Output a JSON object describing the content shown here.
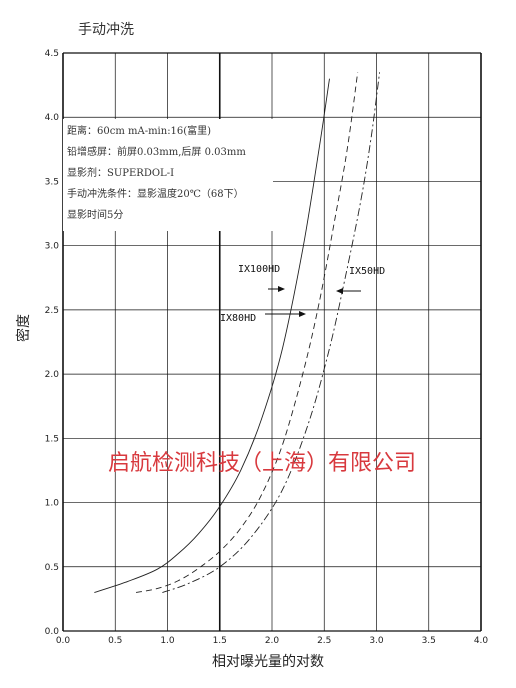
{
  "chart_data": {
    "type": "line",
    "title": "手动冲洗",
    "xlabel": "相对曝光量的对数",
    "ylabel": "密度",
    "xlim": [
      0,
      4
    ],
    "ylim": [
      0,
      4.5
    ],
    "x_ticks": [
      "0.0",
      "0.5",
      "1.0",
      "1.5",
      "2.0",
      "2.5",
      "3.0",
      "3.5",
      "4.0"
    ],
    "y_ticks": [
      "0.0",
      "0.5",
      "1.0",
      "1.5",
      "2.0",
      "2.5",
      "3.0",
      "3.5",
      "4.0",
      "4.5"
    ],
    "grid": true,
    "conditions": [
      "距离：60cm mA-min:16(富里)",
      "铅增感屏：前屏0.03mm,后屏 0.03mm",
      "显影剂：SUPERDOL-I",
      "手动冲洗条件：显影温度20℃（68下）",
      "显影时间5分"
    ],
    "series": [
      {
        "name": "IX100HD",
        "style": "solid",
        "x": [
          0.3,
          0.6,
          0.9,
          1.1,
          1.3,
          1.5,
          1.7,
          1.9,
          2.1,
          2.3,
          2.45,
          2.55
        ],
        "y": [
          0.3,
          0.38,
          0.48,
          0.6,
          0.76,
          0.97,
          1.25,
          1.65,
          2.2,
          3.0,
          3.75,
          4.3
        ]
      },
      {
        "name": "IX80HD",
        "style": "dashed",
        "x": [
          0.7,
          0.9,
          1.1,
          1.3,
          1.5,
          1.7,
          1.9,
          2.1,
          2.3,
          2.45,
          2.6,
          2.72,
          2.82
        ],
        "y": [
          0.3,
          0.33,
          0.39,
          0.49,
          0.62,
          0.8,
          1.06,
          1.45,
          2.02,
          2.55,
          3.2,
          3.75,
          4.35
        ]
      },
      {
        "name": "IX50HD",
        "style": "dashdot",
        "x": [
          0.95,
          1.2,
          1.5,
          1.8,
          2.1,
          2.35,
          2.55,
          2.7,
          2.85,
          2.95,
          3.03
        ],
        "y": [
          0.3,
          0.37,
          0.5,
          0.73,
          1.1,
          1.62,
          2.2,
          2.75,
          3.35,
          3.85,
          4.35
        ]
      }
    ],
    "annotations": [
      {
        "text": "IX100HD",
        "x": 2.22,
        "y": 2.62,
        "target_series": "IX100HD"
      },
      {
        "text": "IX80HD",
        "x": 2.4,
        "y": 2.45,
        "target_series": "IX80HD"
      },
      {
        "text": "IX50HD",
        "x": 2.7,
        "y": 2.62,
        "target_series": "IX50HD"
      }
    ]
  },
  "watermark": "启航检测科技（上海）有限公司",
  "colors": {
    "watermark": "#d8393e",
    "line": "#222222",
    "grid": "#111111"
  }
}
